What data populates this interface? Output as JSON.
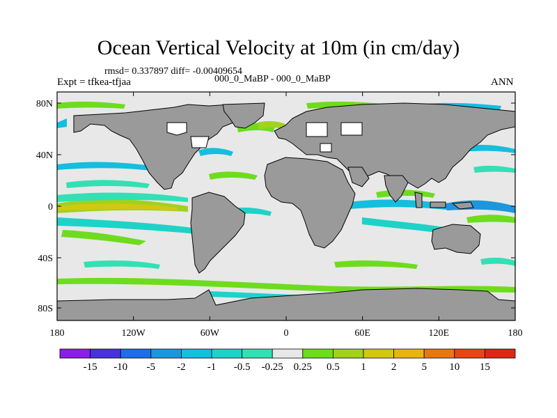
{
  "title": "Ocean Vertical Velocity at 10m (in cm/day)",
  "stats_text": "rmsd= 0.337897 diff= -0.00409654",
  "subtitle": "000_0_MaBP - 000_0_MaBP",
  "expt_label": "Expt = tfkea-tfjaa",
  "season": "ANN",
  "map": {
    "lat_ticks": [
      "80N",
      "40N",
      "0",
      "40S",
      "80S"
    ],
    "lon_ticks": [
      "180",
      "120W",
      "60W",
      "0",
      "60E",
      "120E",
      "180"
    ],
    "land_color": "#9a9a9a",
    "ocean_color": "#e8e8e8"
  },
  "colorbar": {
    "labels": [
      "-15",
      "-10",
      "-5",
      "-2",
      "-1",
      "-0.5",
      "-0.25",
      "0.25",
      "0.5",
      "1",
      "2",
      "5",
      "10",
      "15"
    ],
    "colors": [
      "#8c1ee6",
      "#4832dc",
      "#1e6ee6",
      "#1e96dc",
      "#14bede",
      "#1ed2c8",
      "#32e0b4",
      "#e8e8e8",
      "#6edc1e",
      "#a0d21e",
      "#d2c814",
      "#e6b414",
      "#e67814",
      "#e64614",
      "#dc2814"
    ]
  }
}
